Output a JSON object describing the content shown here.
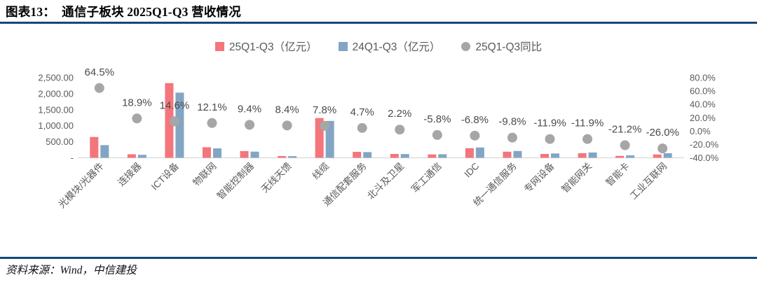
{
  "figure": {
    "title": "图表13：  通信子板块 2025Q1-Q3 营收情况",
    "source": "资料来源：Wind，中信建投"
  },
  "colors": {
    "accent_rule": "#11497B",
    "bar_2025": "#F4757B",
    "bar_2024": "#82A5C3",
    "dot_yoy": "#A6A6A6",
    "axis_text": "#595959",
    "baseline": "#D9D9D9"
  },
  "chart_data": {
    "type": "bar",
    "title": "通信子板块 2025Q1-Q3 营收情况",
    "legend_position": "top",
    "grid": false,
    "categories": [
      "光模块/光器件",
      "连接器",
      "ICT设备",
      "物联网",
      "智能控制器",
      "无线天馈",
      "线缆",
      "通信配套服务",
      "北斗及卫星",
      "军工通信",
      "IDC",
      "统一通信服务",
      "专网设备",
      "智能网关",
      "智能卡",
      "工业互联网"
    ],
    "series": [
      {
        "name": "25Q1-Q3（亿元）",
        "type": "bar",
        "axis": "left",
        "color": "#F4757B",
        "values": [
          650,
          110,
          2330,
          330,
          210,
          55,
          1240,
          185,
          120,
          105,
          300,
          190,
          120,
          145,
          60,
          105
        ]
      },
      {
        "name": "24Q1-Q3（亿元）",
        "type": "bar",
        "axis": "left",
        "color": "#82A5C3",
        "values": [
          395,
          93,
          2033,
          294,
          192,
          51,
          1150,
          177,
          117,
          111,
          322,
          211,
          136,
          165,
          76,
          142
        ]
      },
      {
        "name": "25Q1-Q3同比",
        "type": "scatter",
        "axis": "right",
        "color": "#A6A6A6",
        "values": [
          64.5,
          18.9,
          14.6,
          12.1,
          9.4,
          8.4,
          7.8,
          4.7,
          2.2,
          -5.8,
          -6.8,
          -9.8,
          -11.9,
          -11.9,
          -21.2,
          -26.0
        ],
        "labels": [
          "64.5%",
          "18.9%",
          "14.6%",
          "12.1%",
          "9.4%",
          "8.4%",
          "7.8%",
          "4.7%",
          "2.2%",
          "-5.8%",
          "-6.8%",
          "-9.8%",
          "-11.9%",
          "-11.9%",
          "-21.2%",
          "-26.0%"
        ]
      }
    ],
    "left_axis": {
      "min": 0,
      "max": 2500,
      "tick_values": [
        2500,
        2000,
        1500,
        1000,
        500,
        0
      ],
      "tick_labels": [
        "2,500.00",
        "2,000.00",
        "1,500.00",
        "1,000.00",
        "500.00",
        "-"
      ]
    },
    "right_axis": {
      "min": -40,
      "max": 80,
      "tick_values": [
        80,
        60,
        40,
        20,
        0,
        -20,
        -40
      ],
      "tick_labels": [
        "80.0%",
        "60.0%",
        "40.0%",
        "20.0%",
        "0.0%",
        "-20.0%",
        "-40.0%"
      ]
    }
  }
}
